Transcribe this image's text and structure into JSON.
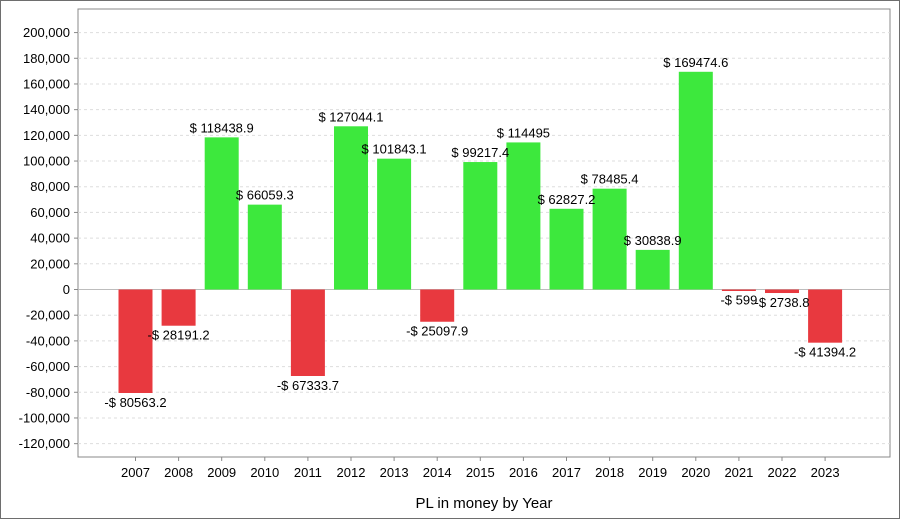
{
  "chart_data": {
    "type": "bar",
    "xlabel": "PL in money by Year",
    "ylabel": "",
    "ylim": [
      -130000,
      220000
    ],
    "yticks": [
      -120000,
      -100000,
      -80000,
      -60000,
      -40000,
      -20000,
      0,
      20000,
      40000,
      60000,
      80000,
      100000,
      120000,
      140000,
      160000,
      180000,
      200000
    ],
    "ytick_labels": [
      "-120,000",
      "-100,000",
      "-80,000",
      "-60,000",
      "-40,000",
      "-20,000",
      "0",
      "20,000",
      "40,000",
      "60,000",
      "80,000",
      "100,000",
      "120,000",
      "140,000",
      "160,000",
      "180,000",
      "200,000"
    ],
    "grid": true,
    "categories": [
      "2007",
      "2008",
      "2009",
      "2010",
      "2011",
      "2012",
      "2013",
      "2014",
      "2015",
      "2016",
      "2017",
      "2018",
      "2019",
      "2020",
      "2021",
      "2022",
      "2023"
    ],
    "values": [
      -80563.2,
      -28191.2,
      118438.9,
      66059.3,
      -67333.7,
      127044.1,
      101843.1,
      -25097.9,
      99217.4,
      114495,
      62827.2,
      78485.4,
      30838.9,
      169474.6,
      -599,
      -2738.8,
      -41394.2
    ],
    "data_labels": [
      "-$ 80563.2",
      "-$ 28191.2",
      "$ 118438.9",
      "$ 66059.3",
      "-$ 67333.7",
      "$ 127044.1",
      "$ 101843.1",
      "-$ 25097.9",
      "$ 99217.4",
      "$ 114495",
      "$ 62827.2",
      "$ 78485.4",
      "$ 30838.9",
      "$ 169474.6",
      "-$ 599",
      "-$ 2738.8",
      "-$ 41394.2"
    ],
    "colors": {
      "positive": "#3de83d",
      "negative": "#e8393f"
    }
  }
}
